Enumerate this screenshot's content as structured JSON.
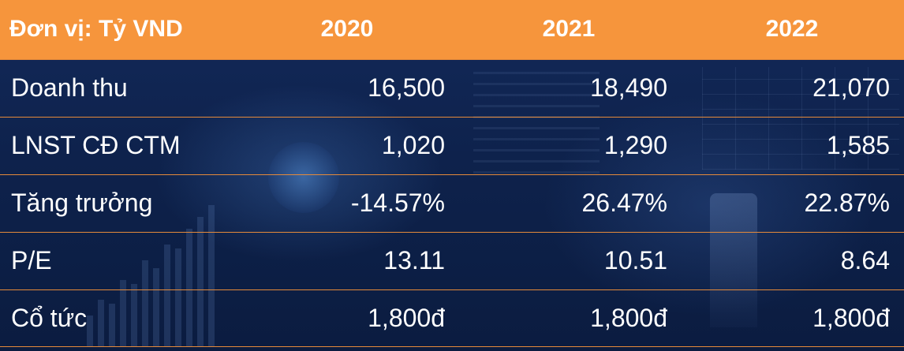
{
  "chart_data": {
    "type": "table",
    "header": {
      "unit_label": "Đơn vị: Tỷ VND",
      "years": [
        "2020",
        "2021",
        "2022"
      ]
    },
    "rows": [
      {
        "label": "Doanh thu",
        "values": [
          "16,500",
          "18,490",
          "21,070"
        ]
      },
      {
        "label": "LNST CĐ CTM",
        "values": [
          "1,020",
          "1,290",
          "1,585"
        ]
      },
      {
        "label": "Tăng trưởng",
        "values": [
          "-14.57%",
          "26.47%",
          "22.87%"
        ]
      },
      {
        "label": "P/E",
        "values": [
          "13.11",
          "10.51",
          "8.64"
        ]
      },
      {
        "label": "Cổ tức",
        "values": [
          "1,800đ",
          "1,800đ",
          "1,800đ"
        ]
      }
    ]
  },
  "colors": {
    "header_background": "#f6953c",
    "row_border": "#e58a3a",
    "background": "#0d1f46",
    "text": "#ffffff"
  }
}
